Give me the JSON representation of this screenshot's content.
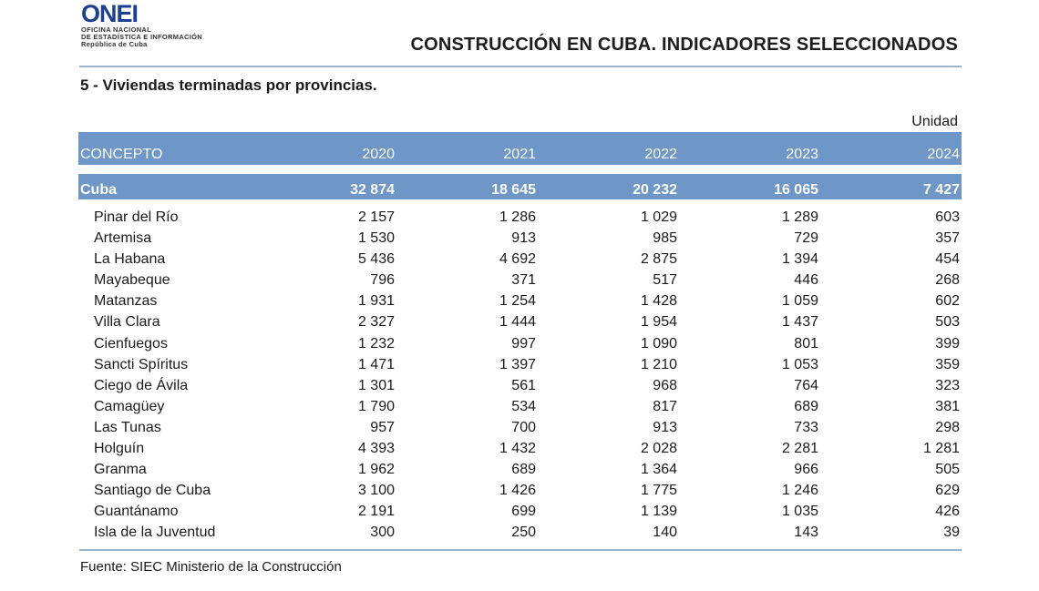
{
  "logo": {
    "word": "ONEI",
    "lines": [
      "OFICINA NACIONAL",
      "DE ESTADÍSTICA E INFORMACIÓN",
      "República de Cuba"
    ]
  },
  "document_title": "CONSTRUCCIÓN EN CUBA. INDICADORES SELECCIONADOS",
  "table_title": "5 - Viviendas terminadas por provincias.",
  "unit_label": "Unidad",
  "header": {
    "concept": "CONCEPTO",
    "years": [
      "2020",
      "2021",
      "2022",
      "2023",
      "2024"
    ]
  },
  "total": {
    "label": "Cuba",
    "values": [
      "32 874",
      "18 645",
      "20 232",
      "16 065",
      "7 427"
    ]
  },
  "rows": [
    {
      "label": "Pinar del Río",
      "values": [
        "2 157",
        "1 286",
        "1 029",
        "1 289",
        "603"
      ]
    },
    {
      "label": "Artemisa",
      "values": [
        "1 530",
        "913",
        "985",
        "729",
        "357"
      ]
    },
    {
      "label": "La Habana",
      "values": [
        "5 436",
        "4 692",
        "2 875",
        "1 394",
        "454"
      ]
    },
    {
      "label": "Mayabeque",
      "values": [
        "796",
        "371",
        "517",
        "446",
        "268"
      ]
    },
    {
      "label": "Matanzas",
      "values": [
        "1 931",
        "1 254",
        "1 428",
        "1 059",
        "602"
      ]
    },
    {
      "label": "Villa Clara",
      "values": [
        "2 327",
        "1 444",
        "1 954",
        "1 437",
        "503"
      ]
    },
    {
      "label": "Cienfuegos",
      "values": [
        "1 232",
        "997",
        "1 090",
        "801",
        "399"
      ]
    },
    {
      "label": "Sancti Spíritus",
      "values": [
        "1 471",
        "1 397",
        "1 210",
        "1 053",
        "359"
      ]
    },
    {
      "label": "Ciego de Ávila",
      "values": [
        "1 301",
        "561",
        "968",
        "764",
        "323"
      ]
    },
    {
      "label": "Camagüey",
      "values": [
        "1 790",
        "534",
        "817",
        "689",
        "381"
      ]
    },
    {
      "label": "Las Tunas",
      "values": [
        "957",
        "700",
        "913",
        "733",
        "298"
      ]
    },
    {
      "label": "Holguín",
      "values": [
        "4 393",
        "1 432",
        "2 028",
        "2 281",
        "1 281"
      ]
    },
    {
      "label": "Granma",
      "values": [
        "1 962",
        "689",
        "1 364",
        "966",
        "505"
      ]
    },
    {
      "label": "Santiago de Cuba",
      "values": [
        "3 100",
        "1 426",
        "1 775",
        "1 246",
        "629"
      ]
    },
    {
      "label": "Guantánamo",
      "values": [
        "2 191",
        "699",
        "1 139",
        "1 035",
        "426"
      ]
    },
    {
      "label": "Isla de la Juventud",
      "values": [
        "300",
        "250",
        "140",
        "143",
        "39"
      ]
    }
  ],
  "source": "Fuente: SIEC Ministerio de la Construcción",
  "colors": {
    "header_band": "#6e97c8",
    "rule": "#9ab3cf",
    "logo": "#1d3f8f"
  }
}
